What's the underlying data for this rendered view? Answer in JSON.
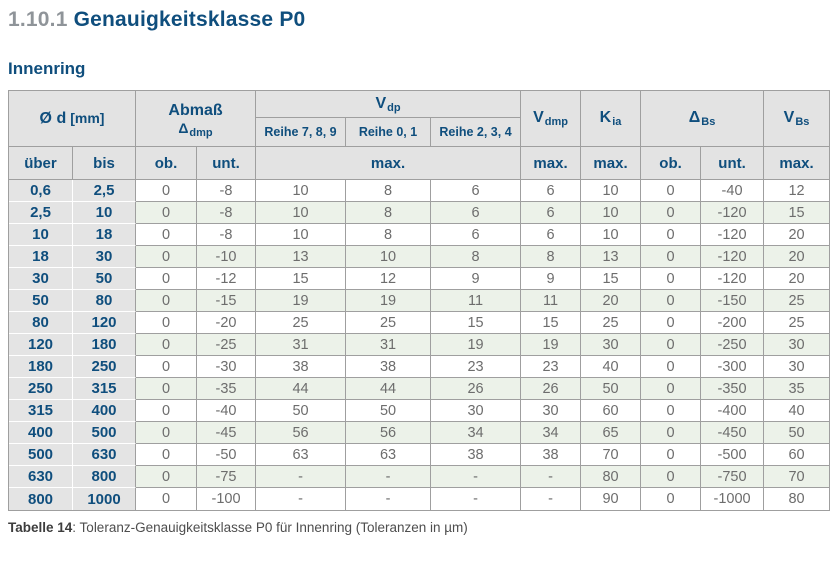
{
  "page": {
    "section_number": "1.10.1",
    "section_title": "Genauigkeitsklasse P0",
    "subtitle": "Innenring",
    "caption_label": "Tabelle 14",
    "caption_text": ": Toleranz-Genauigkeitsklasse P0 für Innenring (Toleranzen in µm)"
  },
  "colors": {
    "accent_blue": "#0f4e7d",
    "heading_number_gray": "#8f9499",
    "header_bg_gray": "#e3e3e3",
    "alt_row_green": "#ecf2e9",
    "data_text_gray": "#6d6d6d",
    "grid_border_gray": "#9f9f9f"
  },
  "table": {
    "header": {
      "col_d": {
        "base": "Ø d",
        "unit": "[mm]"
      },
      "col_abmass": {
        "line1": "Abmaß",
        "base": "Δ",
        "sub": "dmp"
      },
      "col_vdp": {
        "base": "V",
        "sub": "dp"
      },
      "reihe": [
        "Reihe 7, 8, 9",
        "Reihe 0, 1",
        "Reihe 2, 3, 4"
      ],
      "col_vdmp": {
        "base": "V",
        "sub": "dmp"
      },
      "col_kia": {
        "base": "K",
        "sub": "ia"
      },
      "col_dbs": {
        "base": "Δ",
        "sub": "Bs"
      },
      "col_vbs": {
        "base": "V",
        "sub": "Bs"
      },
      "sub_row": [
        "über",
        "bis",
        "ob.",
        "unt.",
        "max.",
        "max.",
        "max.",
        "ob.",
        "unt.",
        "max."
      ]
    },
    "rows": [
      [
        "0,6",
        "2,5",
        "0",
        "-8",
        "10",
        "8",
        "6",
        "6",
        "10",
        "0",
        "-40",
        "12"
      ],
      [
        "2,5",
        "10",
        "0",
        "-8",
        "10",
        "8",
        "6",
        "6",
        "10",
        "0",
        "-120",
        "15"
      ],
      [
        "10",
        "18",
        "0",
        "-8",
        "10",
        "8",
        "6",
        "6",
        "10",
        "0",
        "-120",
        "20"
      ],
      [
        "18",
        "30",
        "0",
        "-10",
        "13",
        "10",
        "8",
        "8",
        "13",
        "0",
        "-120",
        "20"
      ],
      [
        "30",
        "50",
        "0",
        "-12",
        "15",
        "12",
        "9",
        "9",
        "15",
        "0",
        "-120",
        "20"
      ],
      [
        "50",
        "80",
        "0",
        "-15",
        "19",
        "19",
        "11",
        "11",
        "20",
        "0",
        "-150",
        "25"
      ],
      [
        "80",
        "120",
        "0",
        "-20",
        "25",
        "25",
        "15",
        "15",
        "25",
        "0",
        "-200",
        "25"
      ],
      [
        "120",
        "180",
        "0",
        "-25",
        "31",
        "31",
        "19",
        "19",
        "30",
        "0",
        "-250",
        "30"
      ],
      [
        "180",
        "250",
        "0",
        "-30",
        "38",
        "38",
        "23",
        "23",
        "40",
        "0",
        "-300",
        "30"
      ],
      [
        "250",
        "315",
        "0",
        "-35",
        "44",
        "44",
        "26",
        "26",
        "50",
        "0",
        "-350",
        "35"
      ],
      [
        "315",
        "400",
        "0",
        "-40",
        "50",
        "50",
        "30",
        "30",
        "60",
        "0",
        "-400",
        "40"
      ],
      [
        "400",
        "500",
        "0",
        "-45",
        "56",
        "56",
        "34",
        "34",
        "65",
        "0",
        "-450",
        "50"
      ],
      [
        "500",
        "630",
        "0",
        "-50",
        "63",
        "63",
        "38",
        "38",
        "70",
        "0",
        "-500",
        "60"
      ],
      [
        "630",
        "800",
        "0",
        "-75",
        "-",
        "-",
        "-",
        "-",
        "80",
        "0",
        "-750",
        "70"
      ],
      [
        "800",
        "1000",
        "0",
        "-100",
        "-",
        "-",
        "-",
        "-",
        "90",
        "0",
        "-1000",
        "80"
      ]
    ]
  }
}
